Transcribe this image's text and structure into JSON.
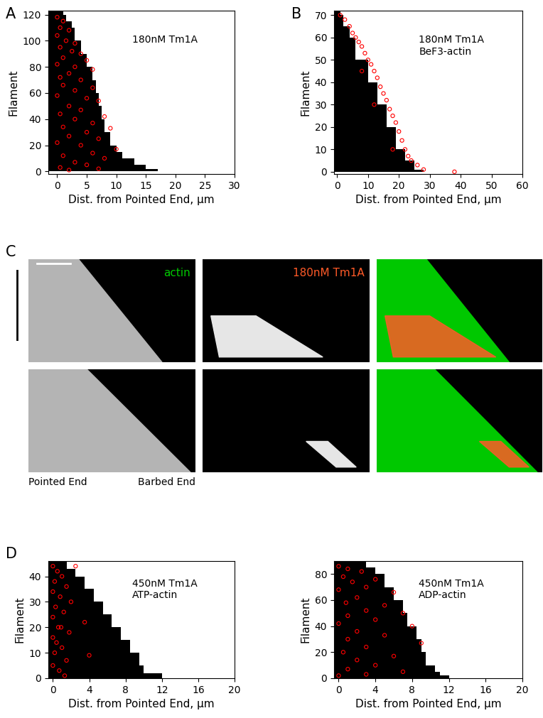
{
  "chart_data": [
    {
      "panel_label": "A",
      "type": "area",
      "annotations": [
        "180nM Tm1A"
      ],
      "x_label": "Dist. from Pointed End, µm",
      "y_label": "Filament",
      "xlim": [
        -1.5,
        30
      ],
      "xticks": [
        0,
        5,
        10,
        15,
        20,
        25,
        30
      ],
      "ylim": [
        -2,
        123
      ],
      "yticks": [
        0,
        20,
        40,
        60,
        80,
        100,
        120
      ],
      "series": [
        {
          "type": "area",
          "color": "#000000",
          "x": [
            22,
            17,
            15,
            13,
            11,
            10,
            9,
            8,
            7.5,
            7,
            6.5,
            6,
            5,
            4,
            3,
            2.5,
            1.5,
            1
          ],
          "y": [
            0,
            2,
            5,
            10,
            15,
            20,
            30,
            40,
            50,
            60,
            70,
            80,
            90,
            100,
            110,
            115,
            120,
            123
          ]
        },
        {
          "type": "scatter",
          "color": "#ff0000",
          "marker": "o",
          "x": [
            0,
            1,
            0.5,
            2,
            0,
            1.5,
            3,
            0.5,
            2.5,
            4,
            1,
            5,
            0,
            3,
            6,
            2,
            0.5,
            4,
            1,
            6,
            3,
            0,
            5,
            7,
            2,
            4,
            0.5,
            8,
            3,
            6,
            1,
            9,
            5,
            2,
            7,
            0,
            4,
            10,
            6,
            1,
            8,
            3,
            5,
            0.5,
            2,
            7
          ],
          "y": [
            118,
            115,
            110,
            108,
            104,
            100,
            98,
            95,
            92,
            90,
            87,
            85,
            82,
            80,
            78,
            75,
            72,
            70,
            66,
            64,
            62,
            58,
            56,
            54,
            50,
            47,
            44,
            42,
            40,
            37,
            34,
            33,
            30,
            27,
            25,
            22,
            20,
            17,
            14,
            12,
            10,
            7,
            5,
            3,
            1,
            2
          ]
        }
      ]
    },
    {
      "panel_label": "B",
      "type": "area",
      "annotations": [
        "180nM Tm1A\nBeF3-actin"
      ],
      "x_label": "Dist. from Pointed End, µm",
      "y_label": "Filament",
      "xlim": [
        -1,
        60
      ],
      "xticks": [
        0,
        10,
        20,
        30,
        40,
        50,
        60
      ],
      "ylim": [
        -1,
        72
      ],
      "yticks": [
        0,
        10,
        20,
        30,
        40,
        50,
        60,
        70
      ],
      "series": [
        {
          "type": "area",
          "color": "#000000",
          "x": [
            38,
            28,
            25,
            22,
            19,
            16,
            13,
            10,
            6,
            4,
            2,
            1
          ],
          "y": [
            0,
            1,
            5,
            10,
            20,
            30,
            40,
            50,
            60,
            65,
            70,
            72
          ]
        },
        {
          "type": "scatter",
          "color": "#ff0000",
          "marker": "o",
          "x": [
            1,
            2.5,
            4,
            5,
            6,
            7,
            8,
            9,
            10,
            11,
            12,
            13,
            14,
            15,
            16,
            17,
            18,
            19,
            20,
            21,
            22,
            23,
            24,
            26,
            28,
            38,
            8,
            12,
            18
          ],
          "y": [
            70,
            68,
            65,
            62,
            60,
            58,
            56,
            53,
            50,
            48,
            45,
            42,
            38,
            35,
            32,
            28,
            25,
            22,
            18,
            14,
            10,
            7,
            5,
            3,
            1,
            0,
            45,
            30,
            10
          ]
        }
      ]
    },
    {
      "panel_label": "D",
      "type": "area",
      "annotations": [
        "450nM Tm1A\nATP-actin"
      ],
      "x_label": "Dist. from Pointed End, µm",
      "y_label": "Filament",
      "xlim": [
        -0.5,
        20
      ],
      "xticks": [
        0,
        4,
        8,
        12,
        16,
        20
      ],
      "ylim": [
        0,
        46
      ],
      "yticks": [
        0,
        10,
        20,
        30,
        40
      ],
      "series": [
        {
          "type": "area",
          "color": "#000000",
          "x": [
            17,
            12,
            10,
            9.5,
            8.5,
            7.5,
            6.5,
            5.5,
            4.5,
            3.5,
            2.5,
            1.5
          ],
          "y": [
            0,
            2,
            5,
            10,
            15,
            20,
            25,
            30,
            35,
            40,
            43,
            46
          ]
        },
        {
          "type": "scatter",
          "color": "#ff0000",
          "marker": "o",
          "x": [
            0,
            0.5,
            1,
            0.2,
            1.5,
            0,
            0.8,
            2,
            0.3,
            1.2,
            0,
            3.5,
            0.6,
            1.8,
            0,
            0.4,
            1,
            0.2,
            4,
            1.5,
            0,
            0.7,
            1.3,
            2.5,
            0.9
          ],
          "y": [
            44,
            42,
            40,
            38,
            36,
            34,
            32,
            30,
            28,
            26,
            24,
            22,
            20,
            18,
            16,
            14,
            12,
            10,
            9,
            7,
            5,
            3,
            1,
            44,
            20
          ]
        }
      ]
    },
    {
      "panel_label": "",
      "type": "area",
      "annotations": [
        "450nM Tm1A\nADP-actin"
      ],
      "x_label": "Dist. from Pointed End, µm",
      "y_label": "Filament",
      "xlim": [
        -0.5,
        20
      ],
      "xticks": [
        0,
        4,
        8,
        12,
        16,
        20
      ],
      "ylim": [
        0,
        90
      ],
      "yticks": [
        0,
        20,
        40,
        60,
        80
      ],
      "series": [
        {
          "type": "area",
          "color": "#000000",
          "x": [
            15,
            12,
            11,
            10.5,
            9.5,
            9,
            8.5,
            7.5,
            7,
            6,
            5,
            4,
            3
          ],
          "y": [
            0,
            2,
            5,
            10,
            20,
            30,
            40,
            50,
            60,
            70,
            80,
            85,
            90
          ]
        },
        {
          "type": "scatter",
          "color": "#ff0000",
          "marker": "o",
          "x": [
            0,
            1,
            2.5,
            0.5,
            4,
            1.5,
            3,
            0,
            6,
            2,
            0.8,
            5,
            3,
            7,
            1,
            4,
            0,
            8,
            2,
            5,
            1,
            9,
            3,
            0.5,
            6,
            2,
            4,
            1,
            7,
            0,
            3
          ],
          "y": [
            86,
            84,
            82,
            78,
            76,
            74,
            70,
            68,
            66,
            62,
            58,
            56,
            52,
            50,
            48,
            45,
            42,
            40,
            36,
            33,
            30,
            27,
            24,
            20,
            17,
            14,
            10,
            7,
            5,
            2,
            3
          ]
        }
      ]
    }
  ],
  "image_panel": {
    "panel_label": "C",
    "channels": [
      "actin",
      "180nM Tm1A"
    ],
    "channel_colors": [
      "#00c800",
      "#ff5a28"
    ],
    "ends": [
      "Pointed End",
      "Barbed End"
    ]
  }
}
